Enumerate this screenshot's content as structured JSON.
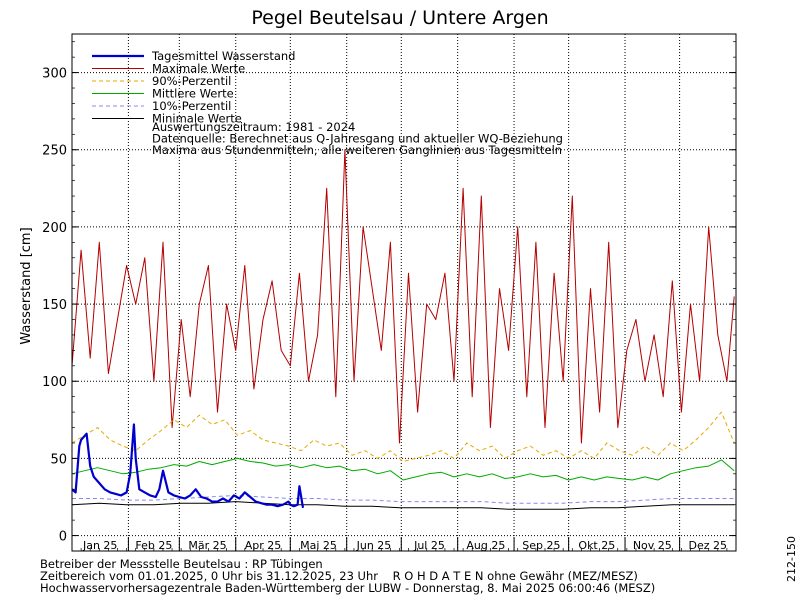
{
  "chart_data": {
    "type": "line",
    "title": "Pegel Beutelsau / Untere Argen",
    "ylabel": "Wasserstand [cm]",
    "xlabel": "",
    "ylim": [
      -10,
      325
    ],
    "yticks": [
      0,
      50,
      100,
      150,
      200,
      250,
      300
    ],
    "months": [
      "Jan 25",
      "Feb 25",
      "Mär 25",
      "Apr 25",
      "Mai 25",
      "Jun 25",
      "Jul 25",
      "Aug 25",
      "Sep 25",
      "Okt 25",
      "Nov 25",
      "Dez 25"
    ],
    "x_unit": "day of year 2025",
    "grid": true,
    "legend_position": "top-left",
    "legend": [
      {
        "key": "tagesmittel",
        "label": "Tagesmittel Wasserstand",
        "color": "#0000cc",
        "style": "solid"
      },
      {
        "key": "maximale",
        "label": "Maximale Werte",
        "color": "#b40000",
        "style": "solid"
      },
      {
        "key": "p90",
        "label": "90%-Perzentil",
        "color": "#e6a800",
        "style": "dashed"
      },
      {
        "key": "mittlere",
        "label": "Mittlere Werte",
        "color": "#00aa00",
        "style": "solid"
      },
      {
        "key": "p10",
        "label": "10%-Perzentil",
        "color": "#8888ee",
        "style": "dashed"
      },
      {
        "key": "minimale",
        "label": "Minimale Werte",
        "color": "#000000",
        "style": "solid"
      }
    ],
    "notes": [
      "Auswertungszeitraum: 1981 - 2024",
      "Datenquelle: Berechnet aus Q-Jahresgang und aktueller WQ-Beziehung",
      "Maxima aus Stundenmitteln, alle weiteren Ganglinien aus Tagesmitteln"
    ],
    "series": [
      {
        "key": "maximale",
        "name": "Maximale Werte",
        "x": [
          0,
          5,
          10,
          15,
          20,
          25,
          30,
          35,
          40,
          45,
          50,
          55,
          60,
          65,
          70,
          75,
          80,
          85,
          90,
          95,
          100,
          105,
          110,
          115,
          120,
          125,
          130,
          135,
          140,
          145,
          150,
          155,
          160,
          165,
          170,
          175,
          180,
          185,
          190,
          195,
          200,
          205,
          210,
          215,
          220,
          225,
          230,
          235,
          240,
          245,
          250,
          255,
          260,
          265,
          270,
          275,
          280,
          285,
          290,
          295,
          300,
          305,
          310,
          315,
          320,
          325,
          330,
          335,
          340,
          345,
          350,
          355,
          360,
          364
        ],
        "y": [
          110,
          185,
          115,
          190,
          105,
          140,
          175,
          150,
          180,
          100,
          190,
          70,
          140,
          90,
          150,
          175,
          80,
          150,
          120,
          175,
          95,
          140,
          165,
          120,
          110,
          170,
          100,
          130,
          225,
          90,
          250,
          100,
          200,
          160,
          120,
          190,
          60,
          170,
          80,
          150,
          140,
          170,
          100,
          225,
          90,
          220,
          70,
          160,
          120,
          200,
          90,
          190,
          70,
          170,
          100,
          220,
          60,
          160,
          80,
          190,
          70,
          120,
          140,
          100,
          130,
          90,
          165,
          80,
          150,
          100,
          200,
          130,
          100,
          155
        ]
      },
      {
        "key": "p90",
        "name": "90%-Perzentil",
        "x": [
          0,
          7,
          14,
          21,
          28,
          35,
          42,
          49,
          56,
          63,
          70,
          77,
          84,
          91,
          98,
          105,
          112,
          119,
          126,
          133,
          140,
          147,
          154,
          161,
          168,
          175,
          182,
          189,
          196,
          203,
          210,
          217,
          224,
          231,
          238,
          245,
          252,
          259,
          266,
          273,
          280,
          287,
          294,
          301,
          308,
          315,
          322,
          329,
          336,
          343,
          350,
          357,
          364
        ],
        "y": [
          60,
          65,
          70,
          62,
          58,
          55,
          62,
          68,
          75,
          70,
          78,
          72,
          75,
          65,
          68,
          62,
          60,
          58,
          55,
          62,
          58,
          60,
          52,
          55,
          50,
          55,
          48,
          50,
          52,
          55,
          50,
          60,
          55,
          58,
          50,
          55,
          58,
          52,
          55,
          50,
          55,
          50,
          60,
          55,
          52,
          58,
          52,
          60,
          55,
          62,
          70,
          80,
          60
        ]
      },
      {
        "key": "mittlere",
        "name": "Mittlere Werte",
        "x": [
          0,
          7,
          14,
          21,
          28,
          35,
          42,
          49,
          56,
          63,
          70,
          77,
          84,
          91,
          98,
          105,
          112,
          119,
          126,
          133,
          140,
          147,
          154,
          161,
          168,
          175,
          182,
          189,
          196,
          203,
          210,
          217,
          224,
          231,
          238,
          245,
          252,
          259,
          266,
          273,
          280,
          287,
          294,
          301,
          308,
          315,
          322,
          329,
          336,
          343,
          350,
          357,
          364
        ],
        "y": [
          40,
          42,
          44,
          42,
          40,
          41,
          43,
          44,
          46,
          45,
          48,
          46,
          48,
          50,
          48,
          47,
          45,
          46,
          44,
          46,
          44,
          45,
          42,
          43,
          40,
          42,
          36,
          38,
          40,
          41,
          38,
          40,
          38,
          40,
          37,
          38,
          40,
          38,
          39,
          36,
          38,
          36,
          38,
          37,
          36,
          38,
          36,
          40,
          42,
          44,
          45,
          49,
          42
        ]
      },
      {
        "key": "p10",
        "name": "10%-Perzentil",
        "x": [
          0,
          15,
          30,
          45,
          60,
          75,
          90,
          105,
          120,
          135,
          150,
          165,
          180,
          195,
          210,
          225,
          240,
          255,
          270,
          285,
          300,
          315,
          330,
          345,
          364
        ],
        "y": [
          24,
          24,
          23,
          23,
          24,
          25,
          26,
          25,
          24,
          24,
          23,
          23,
          22,
          22,
          22,
          22,
          21,
          21,
          21,
          22,
          22,
          23,
          24,
          24,
          24
        ]
      },
      {
        "key": "minimale",
        "name": "Minimale Werte",
        "x": [
          0,
          15,
          30,
          45,
          60,
          75,
          90,
          105,
          120,
          135,
          150,
          165,
          180,
          195,
          210,
          225,
          240,
          255,
          270,
          285,
          300,
          315,
          330,
          345,
          364
        ],
        "y": [
          20,
          21,
          20,
          20,
          21,
          21,
          22,
          21,
          20,
          20,
          19,
          19,
          18,
          18,
          18,
          18,
          17,
          17,
          17,
          18,
          18,
          19,
          20,
          20,
          20
        ]
      },
      {
        "key": "tagesmittel",
        "name": "Tagesmittel Wasserstand",
        "x": [
          0,
          2,
          4,
          5,
          8,
          10,
          12,
          15,
          18,
          21,
          24,
          27,
          30,
          32,
          34,
          35,
          37,
          40,
          43,
          46,
          48,
          50,
          53,
          56,
          59,
          62,
          65,
          68,
          71,
          74,
          77,
          80,
          83,
          86,
          89,
          92,
          95,
          98,
          101,
          104,
          107,
          110,
          113,
          116,
          119,
          120,
          122,
          124,
          125,
          127
        ],
        "y": [
          30,
          28,
          58,
          62,
          66,
          45,
          38,
          34,
          30,
          28,
          27,
          26,
          28,
          40,
          72,
          50,
          30,
          28,
          26,
          25,
          30,
          42,
          28,
          26,
          25,
          24,
          26,
          30,
          25,
          24,
          22,
          22,
          24,
          22,
          26,
          24,
          28,
          25,
          22,
          21,
          20,
          20,
          19,
          20,
          22,
          20,
          19,
          20,
          32,
          18
        ]
      }
    ]
  },
  "footer": {
    "line1": "Betreiber der Messstelle Beutelsau : RP Tübingen",
    "line2": "Zeitbereich vom 01.01.2025, 0 Uhr bis 31.12.2025, 23 Uhr    R O H D A T E N ohne Gewähr (MEZ/MESZ)",
    "line3": "Hochwasservorhersagezentrale Baden-Württemberg der LUBW - Donnerstag, 8. Mai 2025 06:00:46 (MESZ)",
    "side_code": "212-150"
  }
}
